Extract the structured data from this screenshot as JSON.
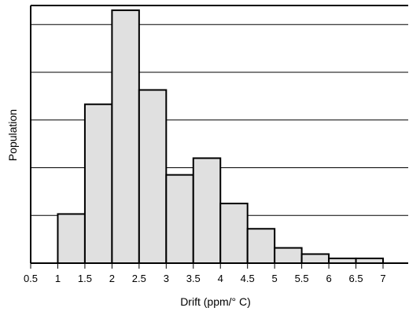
{
  "chart_data": {
    "type": "bar",
    "title": "",
    "xlabel": "Drift (ppm/° C)",
    "ylabel": "Population",
    "x_ticks": [
      "0.5",
      "1",
      "1.5",
      "2",
      "2.5",
      "3",
      "3.5",
      "4",
      "4.5",
      "5",
      "5.5",
      "6",
      "6.5",
      "7"
    ],
    "xlim": [
      0.5,
      7
    ],
    "ylim": [
      0,
      5.4
    ],
    "grid": "horizontal",
    "y_tick_labels": false,
    "bins": [
      {
        "x0": 1.0,
        "x1": 1.5,
        "value": 1.03
      },
      {
        "x0": 1.5,
        "x1": 2.0,
        "value": 3.33
      },
      {
        "x0": 2.0,
        "x1": 2.5,
        "value": 5.3
      },
      {
        "x0": 2.5,
        "x1": 3.0,
        "value": 3.63
      },
      {
        "x0": 3.0,
        "x1": 3.5,
        "value": 1.85
      },
      {
        "x0": 3.5,
        "x1": 4.0,
        "value": 2.2
      },
      {
        "x0": 4.0,
        "x1": 4.5,
        "value": 1.25
      },
      {
        "x0": 4.5,
        "x1": 5.0,
        "value": 0.72
      },
      {
        "x0": 5.0,
        "x1": 5.5,
        "value": 0.32
      },
      {
        "x0": 5.5,
        "x1": 6.0,
        "value": 0.19
      },
      {
        "x0": 6.0,
        "x1": 6.5,
        "value": 0.1
      },
      {
        "x0": 6.5,
        "x1": 7.0,
        "value": 0.1
      }
    ],
    "bar_fill": "#e0e0e0",
    "bar_stroke": "#000000"
  }
}
